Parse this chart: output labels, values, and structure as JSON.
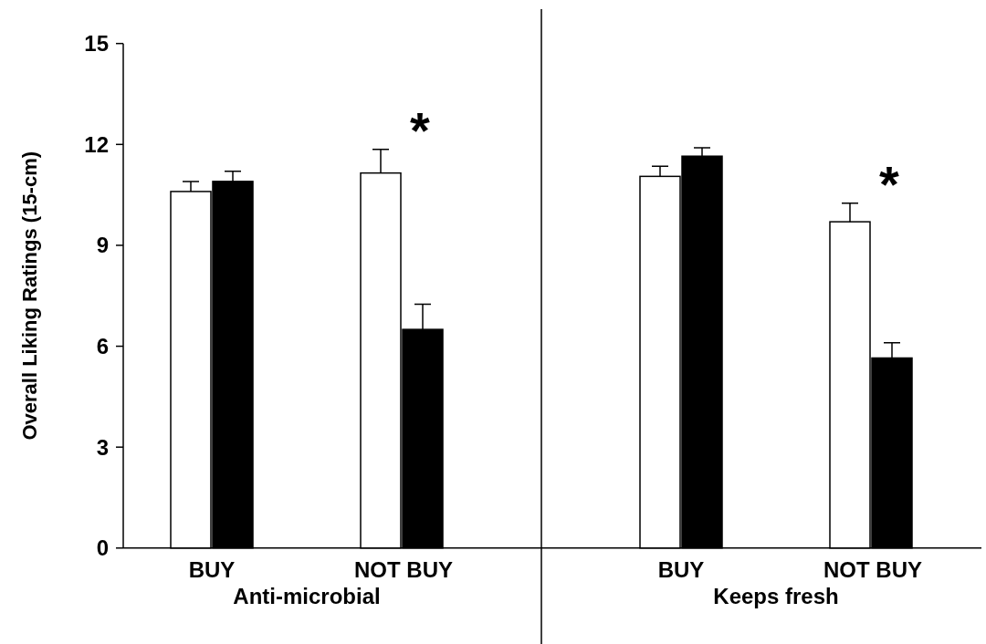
{
  "chart_data": {
    "type": "bar",
    "categories": [
      "BUY",
      "NOT BUY",
      "BUY",
      "NOT BUY"
    ],
    "ylabel": "Overall Liking Ratings (15-cm)",
    "ylim": [
      0,
      15
    ],
    "yticks": [
      0,
      3,
      6,
      9,
      12,
      15
    ],
    "series": [
      {
        "color": "#ffffff",
        "values": [
          10.6,
          11.15,
          11.05,
          9.7
        ],
        "errors": [
          [
            10.6,
            10.9
          ],
          [
            11.15,
            11.85
          ],
          [
            11.05,
            11.35
          ],
          [
            9.7,
            10.25
          ]
        ]
      },
      {
        "color": "#000000",
        "values": [
          10.9,
          6.5,
          11.65,
          5.65
        ],
        "errors": [
          [
            10.9,
            11.2
          ],
          [
            6.5,
            7.25
          ],
          [
            11.65,
            11.9
          ],
          [
            5.65,
            6.1
          ]
        ]
      }
    ],
    "annotations": [
      "Anti-microbial",
      "Keeps fresh",
      "*",
      "*"
    ],
    "grid": false
  }
}
